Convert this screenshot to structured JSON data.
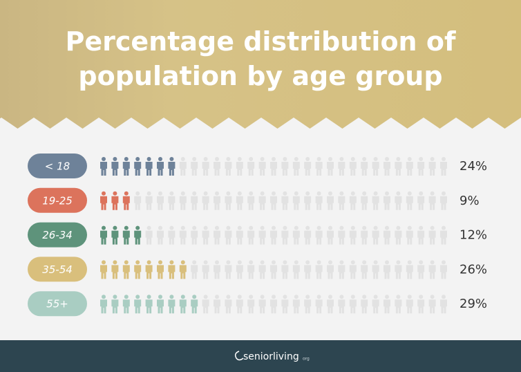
{
  "chart_data": {
    "type": "pictogram",
    "title": "Percentage distribution of population by age group",
    "categories": [
      "< 18",
      "19-25",
      "26-34",
      "35-54",
      "55+"
    ],
    "values": [
      24,
      9,
      12,
      26,
      29
    ],
    "value_labels": [
      "24%",
      "9%",
      "12%",
      "26%",
      "29%"
    ],
    "colors": [
      "#6e8299",
      "#dc735c",
      "#5e937b",
      "#d9bf7c",
      "#a9cdc2"
    ]
  },
  "footer": {
    "brand": "seniorliving",
    "suffix": "org"
  }
}
